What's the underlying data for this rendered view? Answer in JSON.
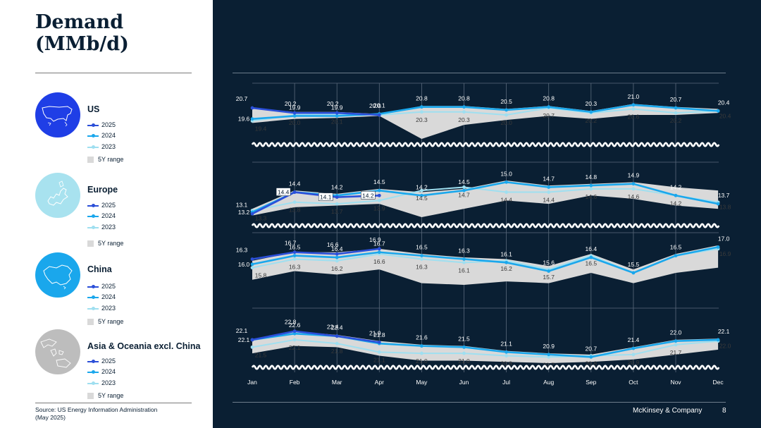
{
  "title_line1": "Demand",
  "title_line2": "(MMb/d)",
  "source_line1": "Source: US Energy Information Administration",
  "source_line2": "(May 2025)",
  "brand": "McKinsey & Company",
  "page_number": "8",
  "legend": {
    "s2025": "2025",
    "s2024": "2024",
    "s2023": "2023",
    "range": "5Y range"
  },
  "colors": {
    "c2025": "#2b4fd8",
    "c2024": "#1aa7ec",
    "c2023": "#9fdff0",
    "range": "#d9d9d9",
    "background": "#0a1f33"
  },
  "regions": [
    {
      "name": "US",
      "globe_color": "#1f3ee6",
      "icon": "us-map-icon"
    },
    {
      "name": "Europe",
      "globe_color": "#a8e2ef",
      "icon": "europe-map-icon"
    },
    {
      "name": "China",
      "globe_color": "#1aa7ec",
      "icon": "china-map-icon"
    },
    {
      "name": "Asia & Oceania excl. China",
      "globe_color": "#bdbdbd",
      "icon": "asia-oceania-map-icon"
    }
  ],
  "chart_data": {
    "type": "line",
    "categories": [
      "Jan",
      "Feb",
      "Mar",
      "Apr",
      "May",
      "Jun",
      "Jul",
      "Aug",
      "Sep",
      "Oct",
      "Nov",
      "Dec"
    ],
    "panels": [
      {
        "region": "US",
        "series": [
          {
            "name": "2025",
            "values": [
              20.7,
              20.2,
              20.2,
              20.0,
              null,
              null,
              null,
              null,
              null,
              null,
              null,
              null
            ]
          },
          {
            "name": "2024",
            "values": [
              19.6,
              19.9,
              19.9,
              20.1,
              20.8,
              20.8,
              20.5,
              20.8,
              20.3,
              21.0,
              20.7,
              20.4
            ]
          },
          {
            "name": "2023",
            "values": [
              19.4,
              20.0,
              20.1,
              20.0,
              20.3,
              20.3,
              20.0,
              20.7,
              20.2,
              20.6,
              20.2,
              20.4
            ]
          }
        ],
        "range_low": [
          19.2,
          19.6,
          19.7,
          19.9,
          17.6,
          19.0,
          19.5,
          19.9,
          19.6,
          20.0,
          20.0,
          20.2
        ],
        "range_high": [
          20.7,
          20.3,
          20.3,
          20.1,
          20.9,
          20.9,
          20.6,
          20.9,
          20.4,
          21.1,
          20.8,
          20.6
        ],
        "labels_2025": [
          "20.7",
          "20.2",
          "20.2",
          "20.0",
          "",
          "",
          "",
          "",
          "",
          "",
          "",
          ""
        ],
        "labels_2024": [
          "19.6",
          "19.9",
          "19.9",
          "20.1",
          "20.8",
          "20.8",
          "20.5",
          "20.8",
          "20.3",
          "21.0",
          "20.7",
          "20.4"
        ],
        "labels_2023": [
          "19.4",
          "20.0",
          "20.1",
          "",
          "20.3",
          "20.3",
          "20.0",
          "20.7",
          "20.2",
          "20.6",
          "20.2",
          "20.4"
        ]
      },
      {
        "region": "Europe",
        "series": [
          {
            "name": "2025",
            "values": [
              13.1,
              14.4,
              14.1,
              14.2,
              null,
              null,
              null,
              null,
              null,
              null,
              null,
              null
            ]
          },
          {
            "name": "2024",
            "values": [
              13.2,
              14.4,
              14.2,
              14.5,
              14.2,
              14.5,
              15.0,
              14.7,
              14.8,
              14.9,
              14.2,
              13.7
            ]
          },
          {
            "name": "2023",
            "values": [
              13.3,
              13.8,
              13.7,
              13.9,
              14.5,
              14.7,
              14.4,
              14.4,
              14.6,
              14.6,
              14.2,
              13.8
            ]
          }
        ],
        "range_low": [
          13.0,
          13.5,
          13.6,
          13.7,
          12.9,
          13.4,
          13.9,
          13.7,
          14.2,
          14.0,
          13.6,
          13.4
        ],
        "range_high": [
          13.4,
          14.5,
          14.3,
          14.6,
          14.4,
          14.6,
          15.1,
          14.8,
          14.9,
          15.0,
          14.7,
          14.5
        ],
        "labels_2025": [
          "13.1",
          "",
          "",
          "",
          "",
          "",
          "",
          "",
          "",
          "",
          "",
          ""
        ],
        "labels_2024": [
          "13.2",
          "14.4",
          "14.2",
          "14.5",
          "14.2",
          "14.5",
          "15.0",
          "14.7",
          "14.8",
          "14.9",
          "14.2",
          "13.7"
        ],
        "labels_2023": [
          "13.3",
          "13.8",
          "13.7",
          "13.9",
          "14.5",
          "14.7",
          "14.4",
          "14.4",
          "14.6",
          "14.6",
          "14.2",
          "13.8"
        ],
        "box_labels": [
          "",
          "14.4",
          "14.1",
          "14.2",
          "",
          "",
          "",
          "",
          "",
          "",
          "",
          ""
        ]
      },
      {
        "region": "China",
        "series": [
          {
            "name": "2025",
            "values": [
              16.3,
              16.7,
              16.6,
              16.9,
              null,
              null,
              null,
              null,
              null,
              null,
              null,
              null
            ]
          },
          {
            "name": "2024",
            "values": [
              16.0,
              16.5,
              16.4,
              16.7,
              16.5,
              16.3,
              16.1,
              15.6,
              16.4,
              15.5,
              16.5,
              17.0
            ]
          },
          {
            "name": "2023",
            "values": [
              15.8,
              16.3,
              16.2,
              16.6,
              16.3,
              16.1,
              16.2,
              15.7,
              16.5,
              15.5,
              16.5,
              16.9
            ]
          }
        ],
        "range_low": [
          15.1,
          15.6,
          15.4,
          15.7,
          14.9,
          14.8,
          15.0,
          14.9,
          15.5,
          14.9,
          15.5,
          15.8
        ],
        "range_high": [
          16.2,
          16.7,
          16.7,
          16.9,
          16.6,
          16.4,
          16.3,
          15.9,
          16.6,
          15.7,
          16.6,
          17.1
        ],
        "labels_2025": [
          "16.3",
          "16.7",
          "16.6",
          "16.9",
          "",
          "",
          "",
          "",
          "",
          "",
          "",
          ""
        ],
        "labels_2024": [
          "16.0",
          "16.5",
          "16.4",
          "16.7",
          "16.5",
          "16.3",
          "16.1",
          "15.6",
          "16.4",
          "15.5",
          "16.5",
          "17.0"
        ],
        "labels_2023": [
          "15.8",
          "16.3",
          "16.2",
          "16.6",
          "16.3",
          "16.1",
          "16.2",
          "15.7",
          "16.5",
          "",
          "",
          "16.9"
        ]
      },
      {
        "region": "Asia & Oceania excl. China",
        "series": [
          {
            "name": "2025",
            "values": [
              22.1,
              22.8,
              22.4,
              21.9,
              null,
              null,
              null,
              null,
              null,
              null,
              null,
              null
            ]
          },
          {
            "name": "2024",
            "values": [
              22.1,
              22.6,
              22.4,
              21.8,
              21.6,
              21.5,
              21.1,
              20.9,
              20.7,
              21.4,
              22.0,
              22.1
            ]
          },
          {
            "name": "2023",
            "values": [
              21.5,
              22.1,
              21.8,
              21.1,
              21.0,
              21.0,
              20.8,
              20.7,
              20.8,
              20.9,
              21.7,
              22.0
            ]
          }
        ],
        "range_low": [
          21.0,
          21.6,
          21.5,
          20.8,
          20.4,
          20.4,
          20.3,
          20.2,
          20.3,
          20.5,
          20.9,
          21.3
        ],
        "range_high": [
          22.1,
          22.8,
          22.5,
          22.0,
          21.7,
          21.6,
          21.2,
          21.0,
          20.9,
          21.5,
          22.1,
          22.2
        ],
        "labels_2025": [
          "22.1",
          "22.8",
          "22.4",
          "21.9",
          "",
          "",
          "",
          "",
          "",
          "",
          "",
          ""
        ],
        "labels_2024": [
          "22.1",
          "22.6",
          "22.4",
          "21.8",
          "21.6",
          "21.5",
          "21.1",
          "20.9",
          "20.7",
          "21.4",
          "22.0",
          "22.1"
        ],
        "labels_2023": [
          "21.5",
          "22.1",
          "21.8",
          "21.1",
          "21.0",
          "21.0",
          "20.8",
          "20.7",
          "20.8",
          "20.9",
          "21.7",
          "22.0"
        ]
      }
    ]
  }
}
